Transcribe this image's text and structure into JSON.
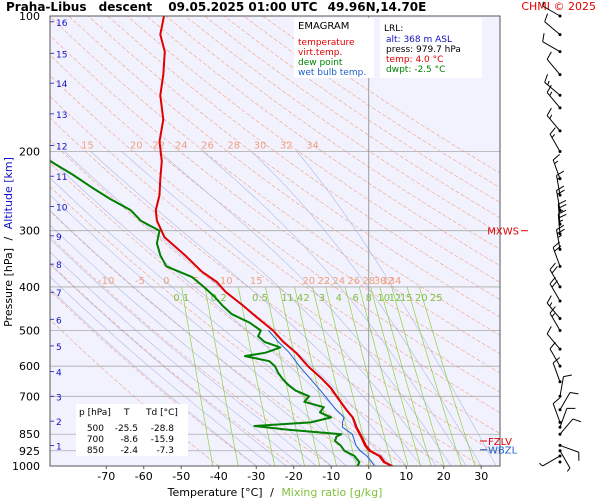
{
  "header": {
    "station": "Praha-Libus",
    "mode": "descent",
    "datetime": "09.05.2025 01:00 UTC",
    "coords": "49.96N,14.70E",
    "copyright": "CHMI © 2025"
  },
  "legend": {
    "title": "EMAGRAM",
    "items": [
      {
        "label": "temperature",
        "color": "#e00000"
      },
      {
        "label": "virt.temp.",
        "color": "#e00000"
      },
      {
        "label": "dew point",
        "color": "#008000"
      },
      {
        "label": "wet bulb temp.",
        "color": "#2060d0"
      }
    ]
  },
  "lrl": {
    "title": "LRL:",
    "lines": [
      {
        "text": "alt: 368 m ASL",
        "color": "#1010c0"
      },
      {
        "text": "press: 979.7 hPa",
        "color": "#000000"
      },
      {
        "text": "temp: 4.0 °C",
        "color": "#e00000"
      },
      {
        "text": "dwpt: -2.5 °C",
        "color": "#008000"
      }
    ]
  },
  "table": {
    "headers": [
      "p [hPa]",
      "T",
      "Td [°C]"
    ],
    "rows": [
      [
        "500",
        "-25.5",
        "-28.8"
      ],
      [
        "700",
        "-8.6",
        "-15.9"
      ],
      [
        "850",
        "-2.4",
        "-7.3"
      ]
    ]
  },
  "markers": {
    "mxws": "MXWS",
    "fzlv": "FZLV",
    "wbzl": "WBZL"
  },
  "axes": {
    "xlabel_temp": "Temperature [°C]",
    "xlabel_sep": "/",
    "xlabel_mix": "Mixing ratio [g/kg]",
    "ylabel_p": "Pressure [hPa]",
    "ylabel_sep": "/",
    "ylabel_alt": "Altitude [km]"
  },
  "chart_data": {
    "type": "line",
    "title": "EMAGRAM",
    "xlabel": "Temperature [°C] / Mixing ratio [g/kg]",
    "ylabel": "Pressure [hPa] / Altitude [km]",
    "xlim": [
      -85,
      35
    ],
    "ylim": [
      1000,
      100
    ],
    "y_scale": "log",
    "x_ticks": [
      "-70",
      "-60",
      "-50",
      "-40",
      "-30",
      "-20",
      "-10",
      "0",
      "10",
      "20",
      "30"
    ],
    "x_tick_values": [
      -70,
      -60,
      -50,
      -40,
      -30,
      -20,
      -10,
      0,
      10,
      20,
      30
    ],
    "p_ticks": [
      "100",
      "200",
      "300",
      "400",
      "500",
      "600",
      "700",
      "850",
      "925",
      "1000"
    ],
    "p_tick_values": [
      100,
      200,
      300,
      400,
      500,
      600,
      700,
      850,
      925,
      1000
    ],
    "alt_ticks": [
      "1",
      "2",
      "3",
      "4",
      "5",
      "6",
      "7",
      "8",
      "9",
      "10",
      "11",
      "12",
      "13",
      "14",
      "15",
      "16"
    ],
    "alt_pressures": [
      900,
      795,
      700,
      617,
      541,
      472,
      411,
      356,
      308,
      265,
      227,
      194,
      165,
      141,
      121,
      103
    ],
    "mixing_ratio_labels": [
      "0.1",
      "0.2",
      "0.5",
      "1",
      "1.4",
      "2",
      "3",
      "4",
      "6",
      "8",
      "10",
      "12",
      "15",
      "20",
      "25"
    ],
    "mixing_ratio_label_temps": [
      -50,
      -40,
      -29,
      -22.5,
      -19.6,
      -16.6,
      -12.5,
      -8,
      -3.5,
      0,
      4,
      7,
      10,
      14,
      18
    ],
    "theta_labels_200": [
      "15",
      "20",
      "22",
      "24",
      "26",
      "28",
      "30",
      "32",
      "34"
    ],
    "theta_labels_200_temps": [
      -75,
      -62,
      -56,
      -50,
      -43,
      -36,
      -29,
      -22,
      -15
    ],
    "theta_labels_400": [
      "-10",
      "-5",
      "0",
      "5",
      "10",
      "15",
      "20",
      "22",
      "24",
      "26",
      "28",
      "30",
      "32",
      "34"
    ],
    "theta_labels_400_temps": [
      -70,
      -61,
      -54,
      -46,
      -38,
      -30,
      -16,
      -12,
      -8,
      -4,
      0,
      3,
      5,
      7
    ],
    "series": [
      {
        "name": "temperature",
        "color": "#e00000",
        "points": [
          [
            1000,
            6.2
          ],
          [
            980,
            4.0
          ],
          [
            950,
            2.8
          ],
          [
            925,
            0.2
          ],
          [
            900,
            -1.0
          ],
          [
            870,
            -1.8
          ],
          [
            850,
            -2.4
          ],
          [
            820,
            -3.4
          ],
          [
            800,
            -3.8
          ],
          [
            780,
            -4.3
          ],
          [
            750,
            -6.0
          ],
          [
            700,
            -8.6
          ],
          [
            670,
            -10.2
          ],
          [
            640,
            -12.5
          ],
          [
            600,
            -16.2
          ],
          [
            560,
            -19.4
          ],
          [
            530,
            -22.8
          ],
          [
            500,
            -25.5
          ],
          [
            470,
            -29.5
          ],
          [
            440,
            -33.5
          ],
          [
            410,
            -38.2
          ],
          [
            390,
            -40.5
          ],
          [
            370,
            -44.5
          ],
          [
            340,
            -49.0
          ],
          [
            310,
            -54.5
          ],
          [
            285,
            -56.5
          ],
          [
            270,
            -56.8
          ],
          [
            250,
            -55.8
          ],
          [
            230,
            -55.6
          ],
          [
            210,
            -55.2
          ],
          [
            190,
            -55.8
          ],
          [
            170,
            -54.8
          ],
          [
            150,
            -55.6
          ],
          [
            135,
            -54.8
          ],
          [
            120,
            -54.4
          ],
          [
            110,
            -55.6
          ],
          [
            100,
            -54.6
          ]
        ]
      },
      {
        "name": "virt.temp.",
        "color": "#e00000",
        "points": [
          [
            1000,
            6.5
          ],
          [
            980,
            4.4
          ],
          [
            950,
            3.2
          ],
          [
            925,
            0.6
          ],
          [
            900,
            -0.6
          ],
          [
            870,
            -1.5
          ],
          [
            850,
            -2.1
          ],
          [
            820,
            -3.1
          ],
          [
            800,
            -3.6
          ],
          [
            780,
            -4.1
          ],
          [
            750,
            -5.8
          ],
          [
            700,
            -8.4
          ],
          [
            670,
            -10.0
          ],
          [
            640,
            -12.4
          ],
          [
            600,
            -16.1
          ],
          [
            560,
            -19.3
          ],
          [
            530,
            -22.7
          ],
          [
            500,
            -25.4
          ],
          [
            470,
            -29.4
          ],
          [
            440,
            -33.4
          ],
          [
            410,
            -38.2
          ],
          [
            390,
            -40.5
          ],
          [
            370,
            -44.5
          ],
          [
            340,
            -49.0
          ],
          [
            310,
            -54.5
          ],
          [
            285,
            -56.5
          ],
          [
            270,
            -56.8
          ],
          [
            250,
            -55.8
          ],
          [
            230,
            -55.6
          ],
          [
            210,
            -55.2
          ],
          [
            190,
            -55.8
          ],
          [
            170,
            -54.8
          ],
          [
            150,
            -55.6
          ],
          [
            135,
            -54.8
          ],
          [
            120,
            -54.4
          ],
          [
            110,
            -55.6
          ],
          [
            100,
            -54.6
          ]
        ]
      },
      {
        "name": "dew point",
        "color": "#008000",
        "points": [
          [
            1000,
            -3.0
          ],
          [
            980,
            -2.5
          ],
          [
            950,
            -3.8
          ],
          [
            925,
            -6.5
          ],
          [
            900,
            -7.5
          ],
          [
            880,
            -9.0
          ],
          [
            860,
            -8.6
          ],
          [
            850,
            -7.3
          ],
          [
            830,
            -21.8
          ],
          [
            815,
            -30.5
          ],
          [
            800,
            -15.5
          ],
          [
            780,
            -10.0
          ],
          [
            760,
            -13.0
          ],
          [
            740,
            -12.0
          ],
          [
            720,
            -17.2
          ],
          [
            700,
            -15.9
          ],
          [
            680,
            -19.5
          ],
          [
            660,
            -21.5
          ],
          [
            640,
            -23.0
          ],
          [
            620,
            -24.2
          ],
          [
            600,
            -25.0
          ],
          [
            585,
            -26.5
          ],
          [
            570,
            -33.0
          ],
          [
            560,
            -27.5
          ],
          [
            545,
            -23.6
          ],
          [
            530,
            -27.8
          ],
          [
            515,
            -29.5
          ],
          [
            500,
            -28.8
          ],
          [
            480,
            -31.8
          ],
          [
            460,
            -36.5
          ],
          [
            440,
            -39.0
          ],
          [
            420,
            -41.2
          ],
          [
            400,
            -44.0
          ],
          [
            380,
            -47.2
          ],
          [
            360,
            -54.0
          ],
          [
            340,
            -55.6
          ],
          [
            320,
            -56.5
          ],
          [
            300,
            -55.8
          ],
          [
            285,
            -60.8
          ],
          [
            270,
            -63.5
          ],
          [
            255,
            -69.0
          ],
          [
            240,
            -74.0
          ],
          [
            225,
            -79.0
          ],
          [
            210,
            -85.0
          ]
        ]
      },
      {
        "name": "wet bulb temp.",
        "color": "#2060d0",
        "points": [
          [
            1000,
            1.5
          ],
          [
            980,
            0.8
          ],
          [
            950,
            -0.5
          ],
          [
            925,
            -2.3
          ],
          [
            900,
            -3.4
          ],
          [
            870,
            -4.0
          ],
          [
            850,
            -4.4
          ],
          [
            820,
            -7.0
          ],
          [
            800,
            -7.0
          ],
          [
            780,
            -6.6
          ],
          [
            750,
            -8.7
          ],
          [
            700,
            -11.6
          ],
          [
            670,
            -13.5
          ],
          [
            640,
            -15.6
          ],
          [
            600,
            -18.5
          ],
          [
            560,
            -21.2
          ],
          [
            530,
            -24.1
          ],
          [
            500,
            -26.7
          ]
        ]
      }
    ],
    "wind_barbs": [
      {
        "p": 980,
        "dir": 270,
        "kt": 0
      },
      {
        "p": 950,
        "dir": 240,
        "kt": 5
      },
      {
        "p": 925,
        "dir": 150,
        "kt": 8
      },
      {
        "p": 900,
        "dir": 110,
        "kt": 10
      },
      {
        "p": 850,
        "dir": 40,
        "kt": 10
      },
      {
        "p": 820,
        "dir": 20,
        "kt": 10
      },
      {
        "p": 800,
        "dir": 340,
        "kt": 10
      },
      {
        "p": 750,
        "dir": 30,
        "kt": 10
      },
      {
        "p": 700,
        "dir": 10,
        "kt": 10
      },
      {
        "p": 650,
        "dir": 340,
        "kt": 10
      },
      {
        "p": 600,
        "dir": 330,
        "kt": 10
      },
      {
        "p": 550,
        "dir": 320,
        "kt": 10
      },
      {
        "p": 500,
        "dir": 330,
        "kt": 15
      },
      {
        "p": 470,
        "dir": 320,
        "kt": 15
      },
      {
        "p": 430,
        "dir": 330,
        "kt": 20
      },
      {
        "p": 400,
        "dir": 330,
        "kt": 20
      },
      {
        "p": 360,
        "dir": 340,
        "kt": 20
      },
      {
        "p": 330,
        "dir": 350,
        "kt": 25
      },
      {
        "p": 305,
        "dir": 355,
        "kt": 25
      },
      {
        "p": 290,
        "dir": 355,
        "kt": 25
      },
      {
        "p": 270,
        "dir": 350,
        "kt": 20
      },
      {
        "p": 250,
        "dir": 350,
        "kt": 15
      },
      {
        "p": 230,
        "dir": 340,
        "kt": 15
      },
      {
        "p": 200,
        "dir": 330,
        "kt": 15
      },
      {
        "p": 180,
        "dir": 320,
        "kt": 15
      },
      {
        "p": 160,
        "dir": 320,
        "kt": 15
      },
      {
        "p": 150,
        "dir": 310,
        "kt": 15
      },
      {
        "p": 135,
        "dir": 320,
        "kt": 10
      },
      {
        "p": 120,
        "dir": 300,
        "kt": 10
      },
      {
        "p": 110,
        "dir": 310,
        "kt": 10
      },
      {
        "p": 100,
        "dir": 300,
        "kt": 5
      }
    ],
    "marker_levels": {
      "mxws": 300,
      "fzlv": 880,
      "wbzl": 920
    },
    "colors": {
      "plot_bg": "#f2f2fe",
      "isobar": "#aaaaaa",
      "dry_adiabat": "#f0a080",
      "moist_adiabat": "#b0b8e0",
      "mixing_ratio": "#90d040",
      "alt_label": "#1010c0",
      "theta_label": "#f0a080",
      "mixing_label": "#80c040"
    }
  }
}
